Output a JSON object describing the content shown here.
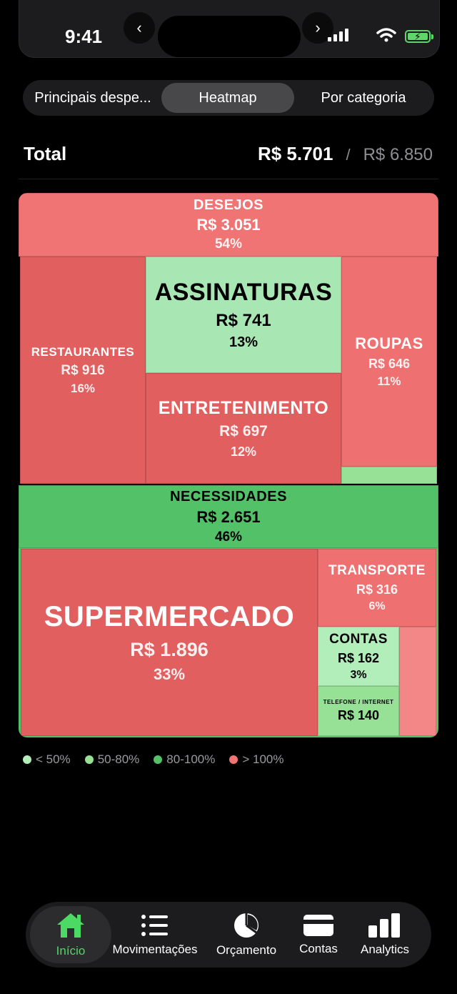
{
  "status": {
    "time": "9:41"
  },
  "segments": [
    "Principais despe...",
    "Heatmap",
    "Por categoria"
  ],
  "summary": {
    "label": "Total",
    "spent": "R$ 5.701",
    "separator": "/",
    "budget": "R$ 6.850"
  },
  "treemap": {
    "desejos": {
      "label": "DESEJOS",
      "amount": "R$ 3.051",
      "pct": "54%"
    },
    "restaurantes": {
      "label": "RESTAURANTES",
      "amount": "R$ 916",
      "pct": "16%"
    },
    "assinaturas": {
      "label": "ASSINATURAS",
      "amount": "R$ 741",
      "pct": "13%"
    },
    "entretenimento": {
      "label": "ENTRETENIMENTO",
      "amount": "R$ 697",
      "pct": "12%"
    },
    "roupas": {
      "label": "ROUPAS",
      "amount": "R$ 646",
      "pct": "11%"
    },
    "necessidades": {
      "label": "NECESSIDADES",
      "amount": "R$ 2.651",
      "pct": "46%"
    },
    "supermercado": {
      "label": "SUPERMERCADO",
      "amount": "R$ 1.896",
      "pct": "33%"
    },
    "transporte": {
      "label": "TRANSPORTE",
      "amount": "R$ 316",
      "pct": "6%"
    },
    "contas": {
      "label": "CONTAS",
      "amount": "R$ 162",
      "pct": "3%"
    },
    "telefone": {
      "label": "TELEFONE / INTERNET",
      "amount": "R$ 140"
    }
  },
  "legend": [
    {
      "label": "< 50%",
      "color": "#b2eeb9"
    },
    {
      "label": "50-80%",
      "color": "#96e196"
    },
    {
      "label": "80-100%",
      "color": "#52c167"
    },
    {
      "label": "> 100%",
      "color": "#f07474"
    }
  ],
  "tabs": [
    "Início",
    "Movimentações",
    "Orçamento",
    "Contas",
    "Analytics"
  ]
}
